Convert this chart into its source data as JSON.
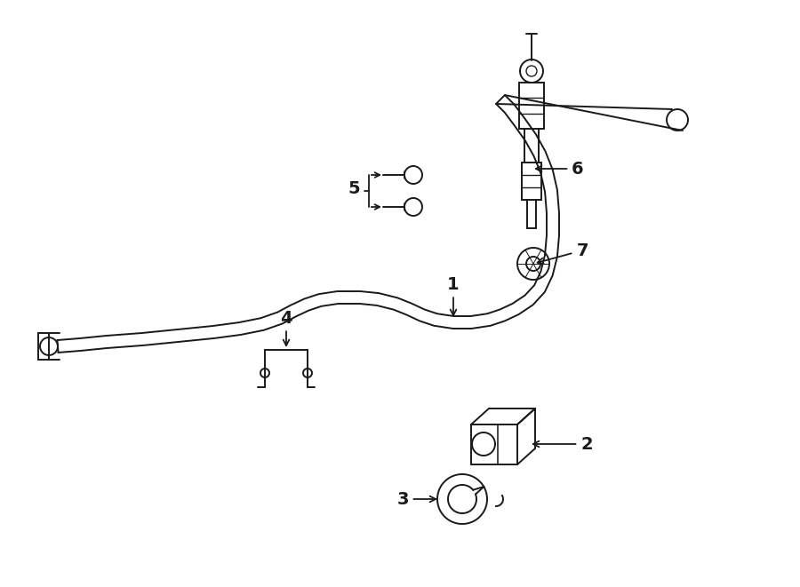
{
  "background_color": "#ffffff",
  "line_color": "#1a1a1a",
  "lw": 1.4,
  "fig_width": 9.0,
  "fig_height": 6.61,
  "dpi": 100
}
